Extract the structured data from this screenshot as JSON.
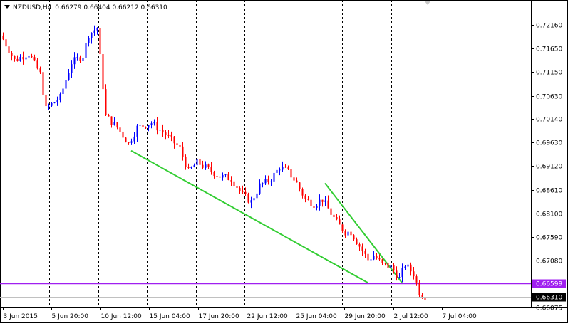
{
  "header": {
    "symbol": "NZDUSD,H4",
    "ohlc": "0.66279 0.66404 0.66212 0.66310"
  },
  "chart_data": {
    "type": "candlestick",
    "symbol": "NZDUSD",
    "timeframe": "H4",
    "ylim": [
      0.66075,
      0.7245
    ],
    "y_ticks": [
      "0.72160",
      "0.71650",
      "0.71150",
      "0.70630",
      "0.70140",
      "0.69630",
      "0.69120",
      "0.68610",
      "0.68100",
      "0.67590",
      "0.67080",
      "0.66075"
    ],
    "x_ticks": [
      "3 Jun 2015",
      "5 Jun 20:00",
      "10 Jun 12:00",
      "15 Jun 04:00",
      "17 Jun 20:00",
      "22 Jun 12:00",
      "25 Jun 04:00",
      "29 Jun 20:00",
      "2 Jul 12:00",
      "7 Jul 04:00"
    ],
    "horizontal_line": {
      "value": 0.66599,
      "label": "0.66599",
      "color": "#a020f0"
    },
    "current_price": {
      "value": 0.6631,
      "label": "0.66310"
    },
    "colors": {
      "bull": "#0000ff",
      "bear": "#ff0000",
      "trendline": "#32cd32",
      "grid": "#000000"
    },
    "trendlines": [
      {
        "start": {
          "bar": 45,
          "price": 0.6945
        },
        "end": {
          "bar": 128,
          "price": 0.6661
        }
      },
      {
        "start": {
          "bar": 113,
          "price": 0.6875
        },
        "end": {
          "bar": 140,
          "price": 0.6661
        }
      }
    ],
    "close_path": [
      [
        0,
        0.7185
      ],
      [
        4,
        0.714
      ],
      [
        9,
        0.7155
      ],
      [
        13,
        0.711
      ],
      [
        15,
        0.7035
      ],
      [
        17,
        0.7045
      ],
      [
        20,
        0.706
      ],
      [
        24,
        0.7135
      ],
      [
        28,
        0.715
      ],
      [
        30,
        0.7195
      ],
      [
        33,
        0.721
      ],
      [
        36,
        0.702
      ],
      [
        40,
        0.6995
      ],
      [
        44,
        0.696
      ],
      [
        47,
        0.6995
      ],
      [
        52,
        0.7005
      ],
      [
        57,
        0.698
      ],
      [
        62,
        0.695
      ],
      [
        65,
        0.69
      ],
      [
        68,
        0.692
      ],
      [
        72,
        0.6905
      ],
      [
        76,
        0.689
      ],
      [
        80,
        0.6885
      ],
      [
        84,
        0.685
      ],
      [
        87,
        0.6835
      ],
      [
        90,
        0.687
      ],
      [
        94,
        0.6885
      ],
      [
        97,
        0.691
      ],
      [
        100,
        0.69
      ],
      [
        103,
        0.6875
      ],
      [
        106,
        0.684
      ],
      [
        109,
        0.683
      ],
      [
        112,
        0.684
      ],
      [
        115,
        0.681
      ],
      [
        117,
        0.679
      ],
      [
        120,
        0.677
      ],
      [
        122,
        0.677
      ],
      [
        125,
        0.674
      ],
      [
        128,
        0.671
      ],
      [
        130,
        0.672
      ],
      [
        133,
        0.67
      ],
      [
        136,
        0.6695
      ],
      [
        139,
        0.667
      ],
      [
        141,
        0.67
      ],
      [
        144,
        0.668
      ],
      [
        146,
        0.664
      ],
      [
        148,
        0.6631
      ]
    ]
  }
}
